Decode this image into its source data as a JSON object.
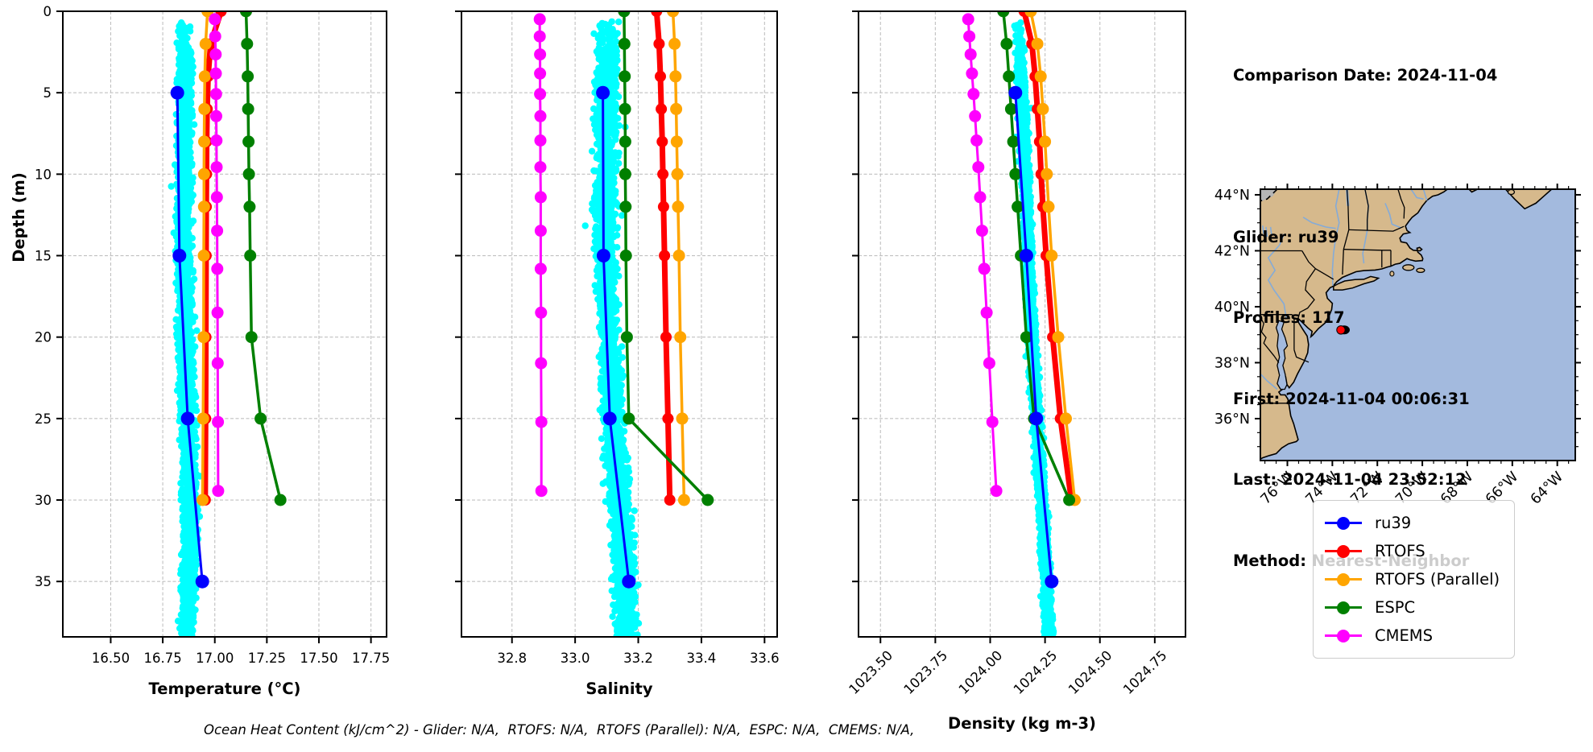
{
  "info_panel": {
    "comparison_date": "Comparison Date: 2024-11-04",
    "glider": "Glider: ru39",
    "profiles": "Profiles: 117",
    "first": "First: 2024-11-04 00:06:31",
    "last": "Last: 2024-11-04 23:52:12",
    "method": "Method: Nearest-Neighbor"
  },
  "caption": "Ocean Heat Content (kJ/cm^2) - Glider: N/A,  RTOFS: N/A,  RTOFS (Parallel): N/A,  ESPC: N/A,  CMEMS: N/A,",
  "colors": {
    "ru39": "#0000ff",
    "rtofs": "#ff0000",
    "rtofs_parallel": "#ffa500",
    "espc": "#008000",
    "cmems": "#ff00ff",
    "glider_scatter": "#00ffff",
    "grid": "#c0c0c0",
    "land": "#d6b98c",
    "ocean": "#a3bade",
    "lake": "#b5b5b5",
    "river": "#84abd8",
    "marker_red": "#ff0000"
  },
  "legend": {
    "entries": [
      {
        "label": "ru39",
        "color": "#0000ff"
      },
      {
        "label": "RTOFS",
        "color": "#ff0000"
      },
      {
        "label": "RTOFS (Parallel)",
        "color": "#ffa500"
      },
      {
        "label": "ESPC",
        "color": "#008000"
      },
      {
        "label": "CMEMS",
        "color": "#ff00ff"
      }
    ]
  },
  "map": {
    "lat_ticks": [
      {
        "label": "44°N",
        "lat": 44
      },
      {
        "label": "42°N",
        "lat": 42
      },
      {
        "label": "40°N",
        "lat": 40
      },
      {
        "label": "38°N",
        "lat": 38
      },
      {
        "label": "36°N",
        "lat": 36
      }
    ],
    "lon_ticks": [
      {
        "label": "76°W",
        "lon": -76
      },
      {
        "label": "74°W",
        "lon": -74
      },
      {
        "label": "72°W",
        "lon": -72
      },
      {
        "label": "70°W",
        "lon": -70
      },
      {
        "label": "68°W",
        "lon": -68
      },
      {
        "label": "66°W",
        "lon": -66
      },
      {
        "label": "64°W",
        "lon": -64
      }
    ],
    "glider_marker": {
      "lon": -73.62,
      "lat": 39.17
    }
  },
  "chart_data": [
    {
      "type": "scatter",
      "title": "",
      "xlabel": "Temperature (°C)",
      "ylabel": "Depth (m)",
      "x_domain": [
        16.27,
        17.825
      ],
      "x_ticks": [
        16.5,
        16.75,
        17.0,
        17.25,
        17.5,
        17.75
      ],
      "x_tick_labels": [
        "16.50",
        "16.75",
        "17.00",
        "17.25",
        "17.50",
        "17.75"
      ],
      "depth_domain": [
        0,
        38.4
      ],
      "depth_ticks": [
        0,
        5,
        10,
        15,
        20,
        25,
        30,
        35
      ],
      "show_depth_labels": true,
      "glider_cloud": {
        "name": "ru39 raw points",
        "n": 2800,
        "seed": 11,
        "depth_range": [
          0.6,
          38.4
        ],
        "spread": 0.05,
        "centers": [
          [
            0.6,
            16.855
          ],
          [
            15,
            16.852
          ],
          [
            25,
            16.868
          ],
          [
            32,
            16.885
          ],
          [
            38.4,
            16.868
          ]
        ]
      },
      "series": [
        {
          "name": "RTOFS",
          "color": "#ff0000",
          "lw": 7,
          "ms": 7,
          "points": [
            [
              0,
              17.03
            ],
            [
              2,
              16.98
            ],
            [
              4,
              16.968
            ],
            [
              6,
              16.963
            ],
            [
              8,
              16.961
            ],
            [
              10,
              16.96
            ],
            [
              12,
              16.959
            ],
            [
              15,
              16.958
            ],
            [
              20,
              16.957
            ],
            [
              25,
              16.956
            ],
            [
              30,
              16.954
            ]
          ]
        },
        {
          "name": "RTOFS (Parallel)",
          "color": "#ffa500",
          "lw": 3.5,
          "ms": 7.5,
          "points": [
            [
              0,
              16.965
            ],
            [
              2,
              16.956
            ],
            [
              4,
              16.952
            ],
            [
              6,
              16.95
            ],
            [
              8,
              16.949
            ],
            [
              10,
              16.948
            ],
            [
              12,
              16.948
            ],
            [
              15,
              16.947
            ],
            [
              20,
              16.946
            ],
            [
              25,
              16.944
            ],
            [
              30,
              16.941
            ]
          ]
        },
        {
          "name": "ESPC",
          "color": "#008000",
          "lw": 3.5,
          "ms": 7.5,
          "points": [
            [
              0,
              17.15
            ],
            [
              2,
              17.155
            ],
            [
              4,
              17.158
            ],
            [
              6,
              17.16
            ],
            [
              8,
              17.162
            ],
            [
              10,
              17.164
            ],
            [
              12,
              17.167
            ],
            [
              15,
              17.17
            ],
            [
              20,
              17.176
            ],
            [
              25,
              17.22
            ],
            [
              30,
              17.315
            ]
          ]
        },
        {
          "name": "CMEMS",
          "color": "#ff00ff",
          "lw": 3,
          "ms": 7.5,
          "points": [
            [
              0.49,
              17.0
            ],
            [
              1.54,
              17.002
            ],
            [
              2.65,
              17.004
            ],
            [
              3.82,
              17.005
            ],
            [
              5.08,
              17.006
            ],
            [
              6.44,
              17.007
            ],
            [
              7.93,
              17.008
            ],
            [
              9.57,
              17.009
            ],
            [
              11.41,
              17.01
            ],
            [
              13.47,
              17.011
            ],
            [
              15.81,
              17.012
            ],
            [
              18.5,
              17.013
            ],
            [
              21.6,
              17.014
            ],
            [
              25.21,
              17.015
            ],
            [
              29.44,
              17.016
            ]
          ]
        },
        {
          "name": "ru39",
          "color": "#0000ff",
          "lw": 3,
          "ms": 8.5,
          "points": [
            [
              5,
              16.82
            ],
            [
              15,
              16.83
            ],
            [
              25,
              16.87
            ],
            [
              35,
              16.94
            ]
          ]
        }
      ]
    },
    {
      "type": "scatter",
      "title": "",
      "xlabel": "Salinity",
      "ylabel": "Depth (m)",
      "x_domain": [
        32.64,
        33.64
      ],
      "x_ticks": [
        32.8,
        33.0,
        33.2,
        33.4,
        33.6
      ],
      "x_tick_labels": [
        "32.8",
        "33.0",
        "33.2",
        "33.4",
        "33.6"
      ],
      "depth_domain": [
        0,
        38.4
      ],
      "depth_ticks": [
        0,
        5,
        10,
        15,
        20,
        25,
        30,
        35
      ],
      "show_depth_labels": false,
      "glider_cloud": {
        "name": "ru39 raw points",
        "n": 2800,
        "seed": 23,
        "depth_range": [
          0.6,
          38.4
        ],
        "spread": 0.046,
        "centers": [
          [
            0.6,
            33.1
          ],
          [
            15,
            33.095
          ],
          [
            25,
            33.12
          ],
          [
            32,
            33.15
          ],
          [
            38.4,
            33.16
          ]
        ]
      },
      "series": [
        {
          "name": "RTOFS",
          "color": "#ff0000",
          "lw": 7,
          "ms": 7,
          "points": [
            [
              0,
              33.258
            ],
            [
              2,
              33.266
            ],
            [
              4,
              33.27
            ],
            [
              6,
              33.273
            ],
            [
              8,
              33.276
            ],
            [
              10,
              33.278
            ],
            [
              12,
              33.28
            ],
            [
              15,
              33.283
            ],
            [
              20,
              33.288
            ],
            [
              25,
              33.294
            ],
            [
              30,
              33.3
            ]
          ]
        },
        {
          "name": "RTOFS (Parallel)",
          "color": "#ffa500",
          "lw": 3.5,
          "ms": 7.5,
          "points": [
            [
              0,
              33.31
            ],
            [
              2,
              33.315
            ],
            [
              4,
              33.318
            ],
            [
              6,
              33.32
            ],
            [
              8,
              33.322
            ],
            [
              10,
              33.324
            ],
            [
              12,
              33.326
            ],
            [
              15,
              33.329
            ],
            [
              20,
              33.333
            ],
            [
              25,
              33.339
            ],
            [
              30,
              33.345
            ]
          ]
        },
        {
          "name": "ESPC",
          "color": "#008000",
          "lw": 3.5,
          "ms": 7.5,
          "points": [
            [
              0,
              33.155
            ],
            [
              2,
              33.156
            ],
            [
              4,
              33.157
            ],
            [
              6,
              33.158
            ],
            [
              8,
              33.159
            ],
            [
              10,
              33.159
            ],
            [
              12,
              33.16
            ],
            [
              15,
              33.161
            ],
            [
              20,
              33.164
            ],
            [
              25,
              33.17
            ],
            [
              30,
              33.42
            ]
          ]
        },
        {
          "name": "CMEMS",
          "color": "#ff00ff",
          "lw": 3,
          "ms": 7.5,
          "points": [
            [
              0.49,
              32.888
            ],
            [
              1.54,
              32.888
            ],
            [
              2.65,
              32.889
            ],
            [
              3.82,
              32.889
            ],
            [
              5.08,
              32.889
            ],
            [
              6.44,
              32.89
            ],
            [
              7.93,
              32.89
            ],
            [
              9.57,
              32.89
            ],
            [
              11.41,
              32.891
            ],
            [
              13.47,
              32.891
            ],
            [
              15.81,
              32.891
            ],
            [
              18.5,
              32.892
            ],
            [
              21.6,
              32.892
            ],
            [
              25.21,
              32.893
            ],
            [
              29.44,
              32.893
            ]
          ]
        },
        {
          "name": "ru39",
          "color": "#0000ff",
          "lw": 3,
          "ms": 8.5,
          "points": [
            [
              5,
              33.088
            ],
            [
              15,
              33.09
            ],
            [
              25,
              33.11
            ],
            [
              35,
              33.17
            ]
          ]
        }
      ]
    },
    {
      "type": "scatter",
      "title": "",
      "xlabel": "Density (kg m-3)",
      "ylabel": "Depth (m)",
      "x_domain": [
        1023.4,
        1024.89
      ],
      "x_ticks": [
        1023.5,
        1023.75,
        1024.0,
        1024.25,
        1024.5,
        1024.75
      ],
      "x_tick_labels": [
        "1023.50",
        "1023.75",
        "1024.00",
        "1024.25",
        "1024.50",
        "1024.75"
      ],
      "x_tick_rotation": -45,
      "depth_domain": [
        0,
        38.4
      ],
      "depth_ticks": [
        0,
        5,
        10,
        15,
        20,
        25,
        30,
        35
      ],
      "show_depth_labels": false,
      "glider_cloud": {
        "name": "ru39 raw points",
        "n": 2800,
        "seed": 37,
        "depth_range": [
          0.6,
          38.4
        ],
        "spread": 0.028,
        "centers": [
          [
            0.6,
            1024.13
          ],
          [
            10,
            1024.16
          ],
          [
            20,
            1024.19
          ],
          [
            30,
            1024.235
          ],
          [
            38.4,
            1024.27
          ]
        ]
      },
      "series": [
        {
          "name": "RTOFS",
          "color": "#ff0000",
          "lw": 7,
          "ms": 7,
          "points": [
            [
              0,
              1024.155
            ],
            [
              2,
              1024.19
            ],
            [
              4,
              1024.205
            ],
            [
              6,
              1024.215
            ],
            [
              8,
              1024.225
            ],
            [
              10,
              1024.232
            ],
            [
              12,
              1024.24
            ],
            [
              15,
              1024.255
            ],
            [
              20,
              1024.285
            ],
            [
              25,
              1024.32
            ],
            [
              30,
              1024.37
            ]
          ]
        },
        {
          "name": "RTOFS (Parallel)",
          "color": "#ffa500",
          "lw": 3.5,
          "ms": 7.5,
          "points": [
            [
              0,
              1024.185
            ],
            [
              2,
              1024.215
            ],
            [
              4,
              1024.23
            ],
            [
              6,
              1024.24
            ],
            [
              8,
              1024.25
            ],
            [
              10,
              1024.258
            ],
            [
              12,
              1024.266
            ],
            [
              15,
              1024.28
            ],
            [
              20,
              1024.31
            ],
            [
              25,
              1024.345
            ],
            [
              30,
              1024.385
            ]
          ]
        },
        {
          "name": "ESPC",
          "color": "#008000",
          "lw": 3.5,
          "ms": 7.5,
          "points": [
            [
              0,
              1024.06
            ],
            [
              2,
              1024.075
            ],
            [
              4,
              1024.085
            ],
            [
              6,
              1024.095
            ],
            [
              8,
              1024.105
            ],
            [
              10,
              1024.115
            ],
            [
              12,
              1024.125
            ],
            [
              15,
              1024.14
            ],
            [
              20,
              1024.165
            ],
            [
              25,
              1024.2
            ],
            [
              30,
              1024.36
            ]
          ]
        },
        {
          "name": "CMEMS",
          "color": "#ff00ff",
          "lw": 3,
          "ms": 7.5,
          "points": [
            [
              0.49,
              1023.9
            ],
            [
              1.54,
              1023.905
            ],
            [
              2.65,
              1023.911
            ],
            [
              3.82,
              1023.917
            ],
            [
              5.08,
              1023.924
            ],
            [
              6.44,
              1023.931
            ],
            [
              7.93,
              1023.938
            ],
            [
              9.57,
              1023.946
            ],
            [
              11.41,
              1023.954
            ],
            [
              13.47,
              1023.963
            ],
            [
              15.81,
              1023.973
            ],
            [
              18.5,
              1023.984
            ],
            [
              21.6,
              1023.996
            ],
            [
              25.21,
              1024.01
            ],
            [
              29.44,
              1024.028
            ]
          ]
        },
        {
          "name": "ru39",
          "color": "#0000ff",
          "lw": 3,
          "ms": 8.5,
          "points": [
            [
              5,
              1024.115
            ],
            [
              15,
              1024.165
            ],
            [
              25,
              1024.21
            ],
            [
              35,
              1024.28
            ]
          ]
        }
      ]
    }
  ]
}
